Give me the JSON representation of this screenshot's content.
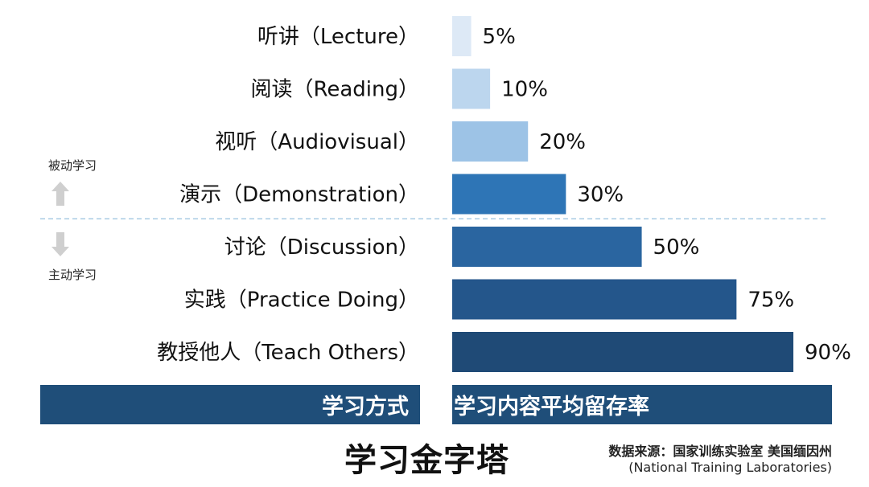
{
  "chart_data": {
    "type": "bar",
    "orientation": "horizontal",
    "categories": [
      "听讲（Lecture）",
      "阅读（Reading）",
      "视听（Audiovisual）",
      "演示（Demonstration）",
      "讨论（Discussion）",
      "实践（Practice Doing）",
      "教授他人（Teach Others）"
    ],
    "values": [
      5,
      10,
      20,
      30,
      50,
      75,
      90
    ],
    "value_labels": [
      "5%",
      "10%",
      "20%",
      "30%",
      "50%",
      "75%",
      "90%"
    ],
    "colors": [
      "#dde9f6",
      "#bcd6ee",
      "#9dc3e6",
      "#2e75b6",
      "#2a65a0",
      "#24568b",
      "#1f4a76"
    ],
    "xlim": [
      0,
      90
    ],
    "title": "学习金字塔",
    "xlabel": "学习内容平均留存率",
    "ylabel": "学习方式",
    "grid": false,
    "divider_after_index": 3
  },
  "groups": {
    "passive": "被动学习",
    "active": "主动学习"
  },
  "footer": {
    "left_label": "学习方式",
    "right_label": "学习内容平均留存率"
  },
  "title": "学习金字塔",
  "source": {
    "line1": "数据来源：国家训练实验室 美国缅因州",
    "line2": "(National Training Laboratories)"
  },
  "colors": {
    "footer_bar": "#1f4e79",
    "divider": "#a8cbe3"
  }
}
